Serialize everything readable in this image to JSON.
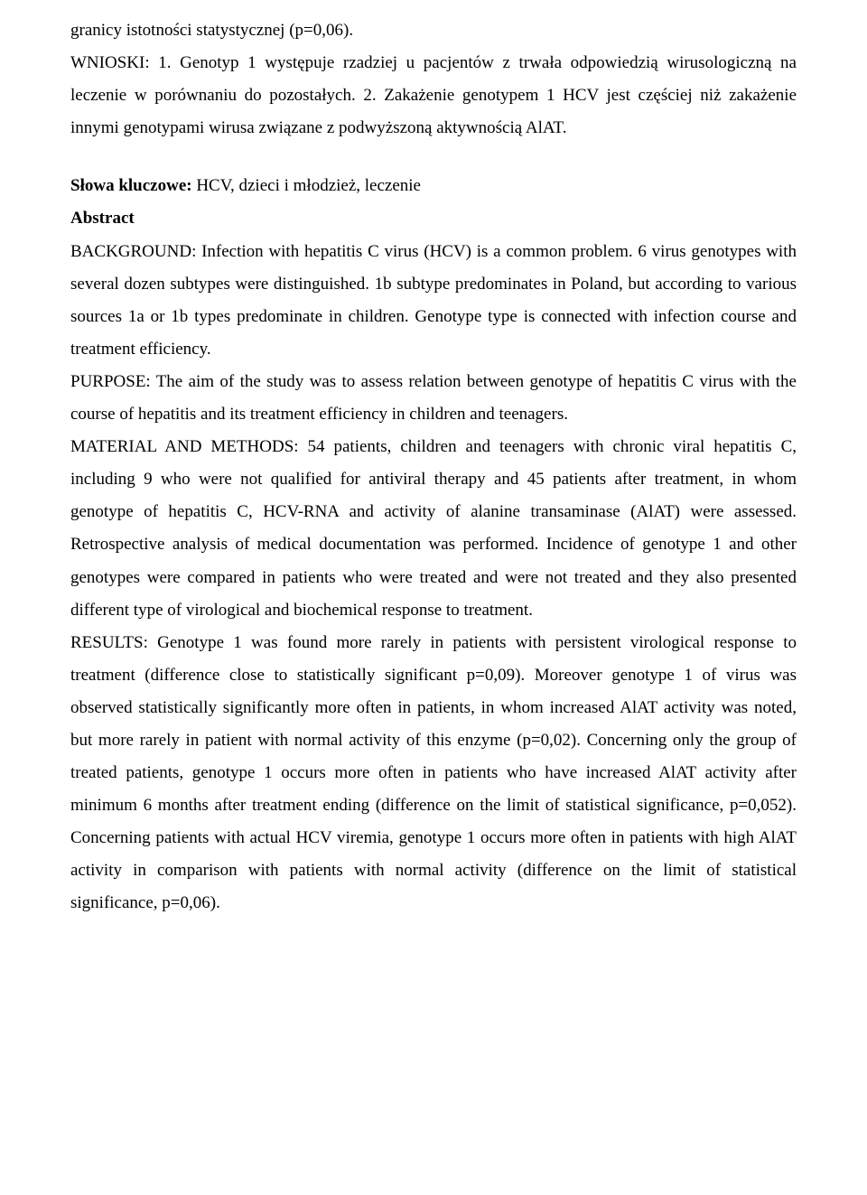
{
  "colors": {
    "background": "#ffffff",
    "text": "#000000"
  },
  "typography": {
    "font_family": "Times New Roman",
    "font_size_pt": 12,
    "line_height": 1.9
  },
  "top_para": "granicy istotności statystycznej (p=0,06).",
  "wnioski": "WNIOSKI: 1. Genotyp 1 występuje rzadziej u pacjentów z trwała odpowiedzią wirusologiczną na leczenie w porównaniu do pozostałych. 2. Zakażenie genotypem 1 HCV jest częściej niż zakażenie innymi genotypami wirusa związane z podwyższoną aktywnością AlAT.",
  "keywords_label": "Słowa kluczowe: ",
  "keywords_text": "HCV, dzieci i młodzież, leczenie",
  "abstract_heading": "Abstract",
  "background": "BACKGROUND: Infection with hepatitis C virus (HCV) is a common problem. 6 virus genotypes with several dozen subtypes were distinguished. 1b subtype predominates in Poland, but according to various sources 1a or 1b types predominate in children. Genotype type is connected with infection course and treatment efficiency.",
  "purpose": "PURPOSE: The aim of the study was to assess relation between genotype of hepatitis C virus with the course of hepatitis and its treatment efficiency in children and teenagers.",
  "material": "MATERIAL AND METHODS: 54 patients, children and teenagers with chronic viral hepatitis C, including 9 who were not qualified for antiviral therapy and 45 patients after treatment, in whom genotype of hepatitis C, HCV-RNA and activity of alanine transaminase (AlAT) were assessed. Retrospective analysis of medical documentation was performed. Incidence of genotype 1 and other genotypes were compared in patients who were treated and were not treated and they also presented different type of virological and biochemical response to treatment.",
  "results": "RESULTS: Genotype 1 was found more rarely in patients with persistent virological response to treatment (difference close to statistically significant p=0,09). Moreover genotype 1 of virus was observed statistically significantly more often in patients, in whom increased AlAT activity was noted, but more rarely in patient with normal activity of this enzyme (p=0,02). Concerning only the group of treated patients, genotype 1 occurs more often in patients who have increased AlAT activity after minimum 6 months after treatment ending (difference on the limit of statistical significance, p=0,052). Concerning patients with actual HCV viremia, genotype 1 occurs more often in patients with high AlAT activity in comparison with patients with normal activity (difference on the limit of statistical significance, p=0,06)."
}
